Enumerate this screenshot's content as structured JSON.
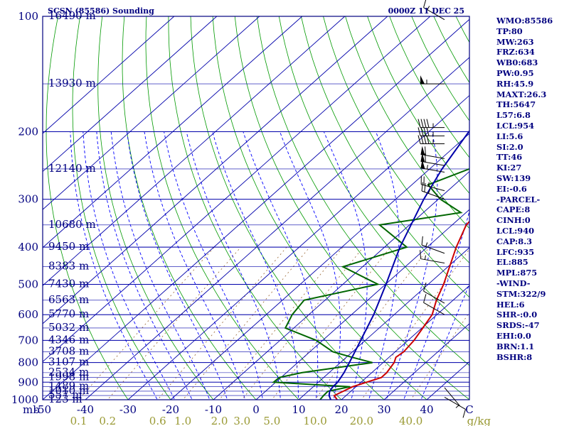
{
  "header": {
    "station": "SCSN (85586) Sounding",
    "time": "0000Z 11 DEC 25"
  },
  "colors": {
    "frame": "#000080",
    "isobar": "#0000aa",
    "isotherm": "#0000aa",
    "dry_adiabat": "#009900",
    "moist_adiabat": "#0000ff",
    "mixing_ratio": "#996633",
    "temperature": "#cc0000",
    "dewpoint": "#006600",
    "parcel": "#0000aa",
    "wind": "#000000",
    "label": "#000080",
    "mixing_label": "#999933"
  },
  "chart_data": {
    "type": "line",
    "diagram": "skew-T log-P",
    "pressure_range_mb": [
      1000,
      100
    ],
    "temperature_range_c": [
      -50,
      50
    ],
    "pressure_unit_label": "mb",
    "isobars_mb": [
      1000,
      900,
      800,
      700,
      600,
      500,
      400,
      300,
      200,
      100
    ],
    "pressure_tick_labels": [
      "1000",
      "900",
      "800",
      "700",
      "600",
      "500",
      "400",
      "300",
      "200",
      "100"
    ],
    "temperature_ticks_c": [
      -50,
      -40,
      -30,
      -20,
      -10,
      0,
      10,
      20,
      30,
      40,
      50
    ],
    "temperature_tick_labels": [
      "-50",
      "-40",
      "-30",
      "-20",
      "-10",
      "0",
      "10",
      "20",
      "30",
      "40",
      "C"
    ],
    "mixing_ratio_lines_gkg": [
      0.1,
      0.2,
      0.6,
      1.0,
      2.0,
      3.0,
      5.0,
      10.0,
      20.0,
      40.0
    ],
    "mixing_ratio_labels": [
      "0.1",
      "0.2",
      "0.6",
      "1.0",
      "2.0",
      "3.0",
      "5.0",
      "10.0",
      "20.0",
      "40.0"
    ],
    "mixing_ratio_unit": "g/kg",
    "height_levels": [
      {
        "p": 1000,
        "label": "123 m"
      },
      {
        "p": 975,
        "label": "557 m"
      },
      {
        "p": 950,
        "label": "1010 m"
      },
      {
        "p": 925,
        "label": "1489 m"
      },
      {
        "p": 875,
        "label": "1998 m"
      },
      {
        "p": 850,
        "label": "2534 m"
      },
      {
        "p": 800,
        "label": "3107 m"
      },
      {
        "p": 750,
        "label": "3708 m"
      },
      {
        "p": 700,
        "label": "4346 m"
      },
      {
        "p": 650,
        "label": "5032 m"
      },
      {
        "p": 600,
        "label": "5770 m"
      },
      {
        "p": 550,
        "label": "6563 m"
      },
      {
        "p": 500,
        "label": "7430 m"
      },
      {
        "p": 450,
        "label": "8383 m"
      },
      {
        "p": 400,
        "label": "9450 m"
      },
      {
        "p": 350,
        "label": "10680 m"
      },
      {
        "p": 250,
        "label": "12140 m"
      },
      {
        "p": 150,
        "label": "13930 m"
      },
      {
        "p": 100,
        "label": "16490 m"
      }
    ],
    "series": [
      {
        "key": "temperature",
        "points": [
          [
            1000,
            19
          ],
          [
            975,
            17.2
          ],
          [
            950,
            18.2
          ],
          [
            925,
            19.2
          ],
          [
            900,
            21.3
          ],
          [
            875,
            23.5
          ],
          [
            850,
            23.5
          ],
          [
            800,
            22.6
          ],
          [
            775,
            21.6
          ],
          [
            750,
            22
          ],
          [
            700,
            21.4
          ],
          [
            650,
            20.2
          ],
          [
            600,
            18.9
          ],
          [
            550,
            16.1
          ],
          [
            500,
            13.6
          ],
          [
            450,
            10.4
          ],
          [
            400,
            6.8
          ],
          [
            350,
            3.3
          ],
          [
            325,
            2.8
          ],
          [
            300,
            2.5
          ],
          [
            275,
            4.7
          ],
          [
            250,
            6.8
          ],
          [
            225,
            8.3
          ],
          [
            200,
            9.9
          ],
          [
            175,
            13.3
          ],
          [
            150,
            17.2
          ],
          [
            125,
            23.6
          ],
          [
            100,
            31.4
          ]
        ]
      },
      {
        "key": "dewpoint",
        "points": [
          [
            1000,
            15
          ],
          [
            975,
            14.7
          ],
          [
            950,
            14.6
          ],
          [
            925,
            18.6
          ],
          [
            900,
            -0.5
          ],
          [
            875,
            -0.4
          ],
          [
            850,
            3.6
          ],
          [
            800,
            17.5
          ],
          [
            775,
            11.3
          ],
          [
            750,
            5.4
          ],
          [
            700,
            -1.5
          ],
          [
            650,
            -12
          ],
          [
            600,
            -13.9
          ],
          [
            550,
            -14.9
          ],
          [
            500,
            -1.8
          ],
          [
            450,
            -14.6
          ],
          [
            400,
            -4.8
          ],
          [
            350,
            -17
          ],
          [
            325,
            -1.2
          ],
          [
            300,
            -9.5
          ],
          [
            275,
            -16.2
          ],
          [
            250,
            -10.7
          ],
          [
            225,
            -9.6
          ],
          [
            200,
            -13.5
          ],
          [
            175,
            -15.8
          ],
          [
            150,
            -18.5
          ],
          [
            125,
            -10.1
          ],
          [
            100,
            -0.4
          ]
        ]
      },
      {
        "key": "parcel",
        "points": [
          [
            1000,
            17.5
          ],
          [
            975,
            16
          ],
          [
            950,
            15
          ],
          [
            925,
            14.6
          ],
          [
            900,
            14.5
          ],
          [
            850,
            13.5
          ],
          [
            800,
            12.1
          ],
          [
            700,
            8.9
          ],
          [
            600,
            5.2
          ],
          [
            500,
            0.1
          ],
          [
            400,
            -6.4
          ],
          [
            300,
            -13.4
          ],
          [
            250,
            -17.1
          ],
          [
            200,
            -20.6
          ],
          [
            150,
            -23.2
          ],
          [
            125,
            -23.5
          ],
          [
            100,
            -22.9
          ]
        ]
      }
    ],
    "wind_barbs": [
      {
        "p": 985,
        "dir": 120,
        "kt": 10
      },
      {
        "p": 930,
        "dir": 140,
        "kt": 5
      },
      {
        "p": 600,
        "dir": 300,
        "kt": 10
      },
      {
        "p": 560,
        "dir": 300,
        "kt": 10
      },
      {
        "p": 440,
        "dir": 280,
        "kt": 15
      },
      {
        "p": 415,
        "dir": 290,
        "kt": 15
      },
      {
        "p": 300,
        "dir": 290,
        "kt": 25
      },
      {
        "p": 285,
        "dir": 285,
        "kt": 25
      },
      {
        "p": 255,
        "dir": 280,
        "kt": 55
      },
      {
        "p": 245,
        "dir": 280,
        "kt": 60
      },
      {
        "p": 235,
        "dir": 280,
        "kt": 60
      },
      {
        "p": 215,
        "dir": 270,
        "kt": 45
      },
      {
        "p": 205,
        "dir": 270,
        "kt": 45
      },
      {
        "p": 195,
        "dir": 270,
        "kt": 45
      },
      {
        "p": 150,
        "dir": 270,
        "kt": 55
      },
      {
        "p": 102,
        "dir": 300,
        "kt": 15
      }
    ]
  },
  "indices": [
    "WMO:85586",
    "TP:80",
    "MW:263",
    "FRZ:634",
    "WB0:683",
    "PW:0.95",
    "RH:45.9",
    "MAXT:26.3",
    "TH:5647",
    "L57:6.8",
    "LCL:954",
    "LI:5.6",
    "SI:2.0",
    "TT:46",
    "KI:27",
    "SW:139",
    "EI:-0.6",
    "-PARCEL-",
    "CAPE:8",
    "CINH:0",
    "LCL:940",
    "CAP:8.3",
    "LFC:935",
    "EL:885",
    "MPL:875",
    "-WIND-",
    "STM:322/9",
    "HEL:6",
    "SHR-:0.0",
    "SRDS:-47",
    "EHI:0.0",
    "BRN:1.1",
    "BSHR:8"
  ]
}
